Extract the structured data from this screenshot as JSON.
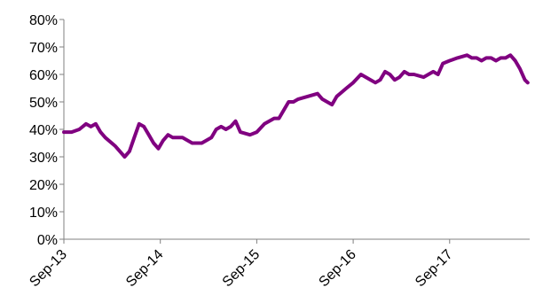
{
  "chart_data": {
    "type": "line",
    "title": "",
    "xlabel": "",
    "ylabel": "",
    "ylim": [
      0,
      80
    ],
    "y_ticks": [
      "0%",
      "10%",
      "20%",
      "30%",
      "40%",
      "50%",
      "60%",
      "70%",
      "80%"
    ],
    "y_tick_values": [
      0,
      10,
      20,
      30,
      40,
      50,
      60,
      70,
      80
    ],
    "x_ticks": [
      "Sep-13",
      "Sep-14",
      "Sep-15",
      "Sep-16",
      "Sep-17"
    ],
    "x_tick_values": [
      2013.67,
      2014.67,
      2015.67,
      2016.67,
      2017.67
    ],
    "xlim": [
      2013.67,
      2018.5
    ],
    "grid": false,
    "legend": "none",
    "series": [
      {
        "color": "#800080",
        "x": [
          2013.67,
          2013.75,
          2013.83,
          2013.9,
          2013.95,
          2014.0,
          2014.05,
          2014.1,
          2014.2,
          2014.3,
          2014.35,
          2014.4,
          2014.45,
          2014.5,
          2014.55,
          2014.6,
          2014.65,
          2014.7,
          2014.75,
          2014.8,
          2014.9,
          2015.0,
          2015.05,
          2015.1,
          2015.2,
          2015.25,
          2015.3,
          2015.35,
          2015.4,
          2015.45,
          2015.5,
          2015.6,
          2015.67,
          2015.75,
          2015.85,
          2015.9,
          2016.0,
          2016.05,
          2016.1,
          2016.2,
          2016.3,
          2016.35,
          2016.4,
          2016.45,
          2016.5,
          2016.6,
          2016.67,
          2016.75,
          2016.85,
          2016.9,
          2016.95,
          2017.0,
          2017.05,
          2017.1,
          2017.15,
          2017.2,
          2017.25,
          2017.3,
          2017.4,
          2017.5,
          2017.55,
          2017.6,
          2017.67,
          2017.75,
          2017.85,
          2017.9,
          2017.95,
          2018.0,
          2018.05,
          2018.1,
          2018.15,
          2018.2,
          2018.25,
          2018.3,
          2018.35,
          2018.4,
          2018.45,
          2018.48
        ],
        "values": [
          39,
          39,
          40,
          42,
          41,
          42,
          39,
          37,
          34,
          30,
          32,
          37,
          42,
          41,
          38,
          35,
          33,
          36,
          38,
          37,
          37,
          35,
          35,
          35,
          37,
          40,
          41,
          40,
          41,
          43,
          39,
          38,
          39,
          42,
          44,
          44,
          50,
          50,
          51,
          52,
          53,
          51,
          50,
          49,
          52,
          55,
          57,
          60,
          58,
          57,
          58,
          61,
          60,
          58,
          59,
          61,
          60,
          60,
          59,
          61,
          60,
          64,
          65,
          66,
          67,
          66,
          66,
          65,
          66,
          66,
          65,
          66,
          66,
          67,
          65,
          62,
          58,
          57
        ]
      }
    ]
  }
}
